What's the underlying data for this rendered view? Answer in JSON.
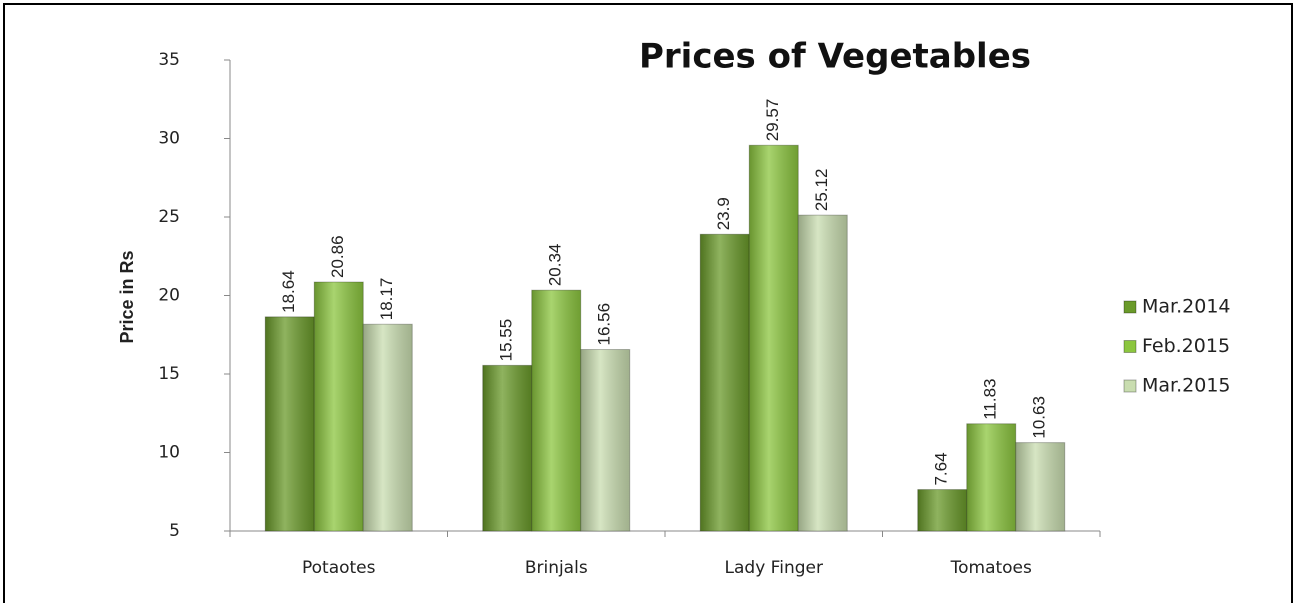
{
  "chart_data": {
    "type": "bar",
    "title": "Prices of Vegetables",
    "y_label": "Price in Rs",
    "categories": [
      "Potaotes",
      "Brinjals",
      "Lady Finger",
      "Tomatoes"
    ],
    "series": [
      {
        "name": "Mar.2014",
        "color": "#6a9a2a",
        "values": [
          18.64,
          15.55,
          23.9,
          7.64
        ]
      },
      {
        "name": "Feb.2015",
        "color": "#8cc63f",
        "values": [
          20.86,
          20.34,
          29.57,
          11.83
        ]
      },
      {
        "name": "Mar.2015",
        "color": "#c9ddb0",
        "values": [
          18.17,
          16.56,
          25.12,
          10.63
        ]
      }
    ],
    "ylim": [
      5,
      35
    ],
    "yticks": [
      5,
      10,
      15,
      20,
      25,
      30,
      35
    ],
    "legend": "right"
  }
}
